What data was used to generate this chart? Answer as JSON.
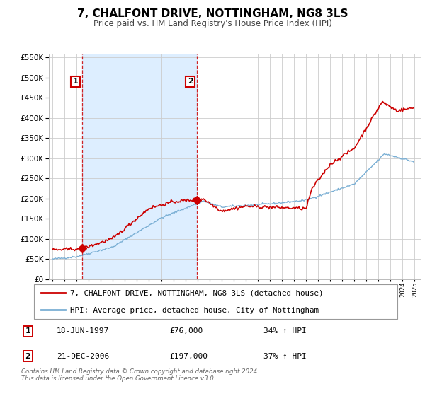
{
  "title": "7, CHALFONT DRIVE, NOTTINGHAM, NG8 3LS",
  "subtitle": "Price paid vs. HM Land Registry's House Price Index (HPI)",
  "legend_line1": "7, CHALFONT DRIVE, NOTTINGHAM, NG8 3LS (detached house)",
  "legend_line2": "HPI: Average price, detached house, City of Nottingham",
  "footnote1": "Contains HM Land Registry data © Crown copyright and database right 2024.",
  "footnote2": "This data is licensed under the Open Government Licence v3.0.",
  "sale1_date": "18-JUN-1997",
  "sale1_price": "£76,000",
  "sale1_hpi": "34% ↑ HPI",
  "sale2_date": "21-DEC-2006",
  "sale2_price": "£197,000",
  "sale2_hpi": "37% ↑ HPI",
  "sale1_x": 1997.46,
  "sale1_y": 76000,
  "sale2_x": 2006.97,
  "sale2_y": 197000,
  "red_color": "#cc0000",
  "blue_color": "#7aafd4",
  "shade_color": "#ddeeff",
  "grid_color": "#cccccc",
  "ylim": [
    0,
    560000
  ],
  "yticks": [
    0,
    50000,
    100000,
    150000,
    200000,
    250000,
    300000,
    350000,
    400000,
    450000,
    500000,
    550000
  ],
  "xlim_start": 1994.7,
  "xlim_end": 2025.5
}
